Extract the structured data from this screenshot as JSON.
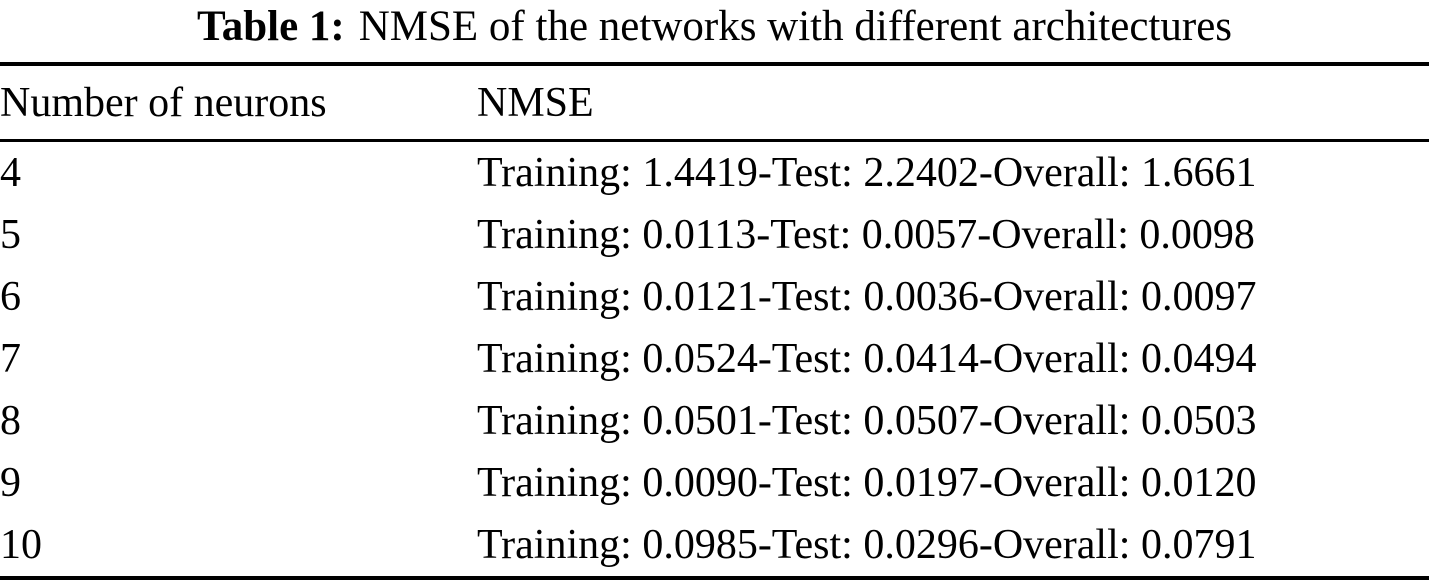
{
  "caption": {
    "label": "Table 1:",
    "text": "NMSE of the networks with different architectures"
  },
  "table": {
    "columns": [
      "Number of neurons",
      "NMSE"
    ],
    "rows": [
      {
        "neurons": "4",
        "nmse": "Training: 1.4419-Test: 2.2402-Overall: 1.6661"
      },
      {
        "neurons": "5",
        "nmse": "Training: 0.0113-Test: 0.0057-Overall: 0.0098"
      },
      {
        "neurons": "6",
        "nmse": "Training: 0.0121-Test: 0.0036-Overall: 0.0097"
      },
      {
        "neurons": "7",
        "nmse": "Training: 0.0524-Test: 0.0414-Overall: 0.0494"
      },
      {
        "neurons": "8",
        "nmse": "Training: 0.0501-Test: 0.0507-Overall: 0.0503"
      },
      {
        "neurons": "9",
        "nmse": "Training: 0.0090-Test: 0.0197-Overall: 0.0120"
      },
      {
        "neurons": "10",
        "nmse": "Training: 0.0985-Test: 0.0296-Overall: 0.0791"
      }
    ]
  }
}
